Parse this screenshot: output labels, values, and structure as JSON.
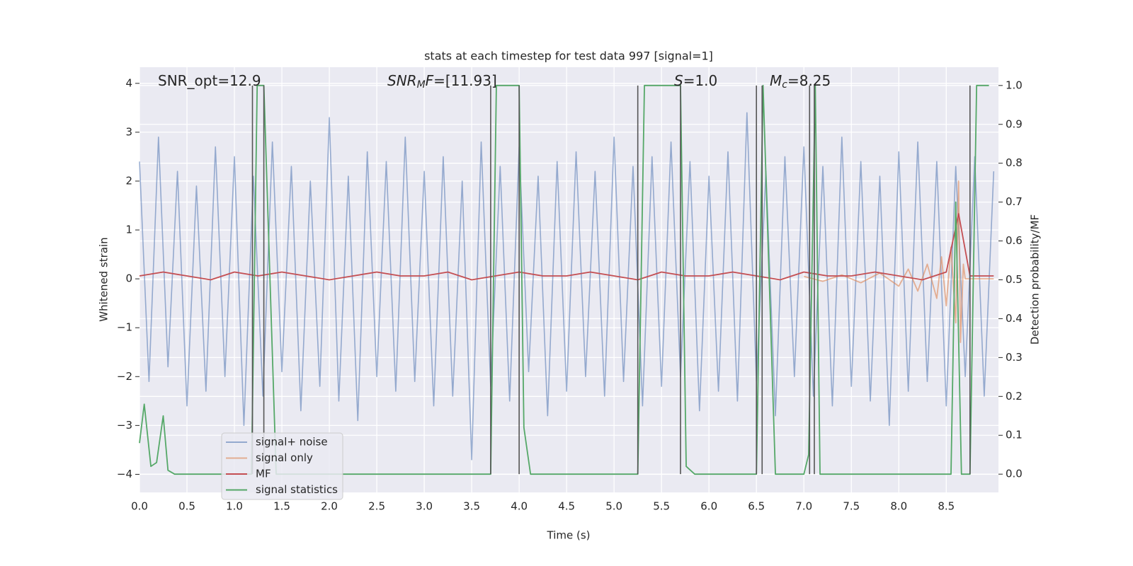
{
  "chart_data": {
    "type": "line",
    "title": "stats at each timestep for test data 997 [signal=1]",
    "xlabel": "Time (s)",
    "ylabel": "Whitened strain",
    "y2label": "Detection probability/MF",
    "annotations": [
      [
        {
          "text": "SNR_opt=12.9"
        }
      ],
      [
        {
          "text": "SNR",
          "style": "italic"
        },
        {
          "text": "M",
          "style": "italic-sub"
        },
        {
          "text": "F",
          "style": "italic"
        },
        {
          "text": "=[11.93]"
        }
      ],
      [
        {
          "text": "S",
          "style": "italic"
        },
        {
          "text": "=1.0"
        }
      ],
      [
        {
          "text": "M",
          "style": "italic"
        },
        {
          "text": "c",
          "style": "italic-sub"
        },
        {
          "text": "=8.25"
        }
      ]
    ],
    "xlim": [
      0,
      9.05
    ],
    "ylim": [
      -4.37,
      4.33
    ],
    "y2lim": [
      -0.047,
      1.047
    ],
    "xticks": [
      {
        "value": 0,
        "label": "0.0"
      },
      0.5,
      {
        "value": 1,
        "label": "1.0"
      },
      1.5,
      {
        "value": 2,
        "label": "2.0"
      },
      2.5,
      {
        "value": 3,
        "label": "3.0"
      },
      3.5,
      {
        "value": 4,
        "label": "4.0"
      },
      4.5,
      {
        "value": 5,
        "label": "5.0"
      },
      5.5,
      {
        "value": 6,
        "label": "6.0"
      },
      6.5,
      {
        "value": 7,
        "label": "7.0"
      },
      7.5,
      {
        "value": 8,
        "label": "8.0"
      },
      8.5
    ],
    "yticks": [
      {
        "value": -4,
        "label": "−4"
      },
      {
        "value": -3,
        "label": "−3"
      },
      {
        "value": -2,
        "label": "−2"
      },
      {
        "value": -1,
        "label": "−1"
      },
      0,
      1,
      2,
      3,
      4
    ],
    "y2ticks": [
      {
        "value": 0,
        "label": "0.0"
      },
      0.1,
      0.2,
      0.3,
      0.4,
      0.5,
      0.6,
      0.7,
      0.8,
      0.9,
      {
        "value": 1,
        "label": "1.0"
      }
    ],
    "grid": true,
    "legend": "lower left",
    "series": [
      {
        "name": "signal+ noise",
        "color": "#4c72b0",
        "opacity": 0.55,
        "x": [
          0,
          0.1,
          0.2,
          0.3,
          0.4,
          0.5,
          0.6,
          0.7,
          0.8,
          0.9,
          1.0,
          1.1,
          1.2,
          1.3,
          1.4,
          1.5,
          1.6,
          1.7,
          1.8,
          1.9,
          2.0,
          2.1,
          2.2,
          2.3,
          2.4,
          2.5,
          2.6,
          2.7,
          2.8,
          2.9,
          3.0,
          3.1,
          3.2,
          3.3,
          3.4,
          3.5,
          3.6,
          3.7,
          3.8,
          3.9,
          4.0,
          4.1,
          4.2,
          4.3,
          4.4,
          4.5,
          4.6,
          4.7,
          4.8,
          4.9,
          5.0,
          5.1,
          5.2,
          5.3,
          5.4,
          5.5,
          5.6,
          5.7,
          5.8,
          5.9,
          6.0,
          6.1,
          6.2,
          6.3,
          6.4,
          6.5,
          6.6,
          6.7,
          6.8,
          6.9,
          7.0,
          7.1,
          7.2,
          7.3,
          7.4,
          7.5,
          7.6,
          7.7,
          7.8,
          7.9,
          8.0,
          8.1,
          8.2,
          8.3,
          8.4,
          8.5,
          8.6,
          8.7,
          8.8,
          8.9,
          9.0
        ],
        "values": [
          2.4,
          -2.1,
          2.9,
          -1.8,
          2.2,
          -2.6,
          1.9,
          -2.3,
          2.7,
          -2.0,
          2.5,
          -3.0,
          2.1,
          -2.4,
          2.8,
          -1.9,
          2.3,
          -2.7,
          2.0,
          -2.2,
          3.3,
          -2.5,
          2.1,
          -2.9,
          2.6,
          -2.0,
          2.4,
          -2.3,
          2.9,
          -2.1,
          2.2,
          -2.6,
          2.5,
          -2.4,
          2.0,
          -3.7,
          2.8,
          -2.2,
          2.3,
          -2.5,
          2.7,
          -1.9,
          2.1,
          -2.8,
          2.4,
          -2.3,
          2.6,
          -2.0,
          2.2,
          -2.4,
          2.9,
          -2.1,
          2.3,
          -2.6,
          2.5,
          -2.2,
          2.8,
          -2.0,
          2.4,
          -2.7,
          2.1,
          -2.3,
          2.6,
          -2.5,
          3.4,
          -2.1,
          2.2,
          -2.8,
          2.5,
          -2.0,
          2.7,
          -2.4,
          2.3,
          -2.6,
          2.9,
          -2.2,
          2.4,
          -2.5,
          2.1,
          -3.0,
          2.6,
          -2.3,
          2.8,
          -2.1,
          2.4,
          -2.6,
          2.3,
          -2.0,
          2.5,
          -2.4,
          2.2
        ]
      },
      {
        "name": "signal only",
        "color": "#dd8452",
        "opacity": 0.6,
        "x": [
          7.0,
          7.2,
          7.4,
          7.6,
          7.8,
          8.0,
          8.1,
          8.2,
          8.3,
          8.4,
          8.45,
          8.5,
          8.55,
          8.6,
          8.63,
          8.65,
          8.68,
          8.7,
          8.8,
          9.0
        ],
        "values": [
          0.05,
          -0.05,
          0.08,
          -0.08,
          0.12,
          -0.15,
          0.2,
          -0.25,
          0.3,
          -0.4,
          0.45,
          -0.55,
          0.65,
          -0.9,
          2.0,
          -1.3,
          0.3,
          0,
          0,
          0
        ]
      },
      {
        "name": "MF",
        "color": "#c44e52",
        "opacity": 1,
        "axis": "y2",
        "x": [
          0,
          0.25,
          0.5,
          0.75,
          1.0,
          1.25,
          1.5,
          1.75,
          2.0,
          2.25,
          2.5,
          2.75,
          3.0,
          3.25,
          3.5,
          3.75,
          4.0,
          4.25,
          4.5,
          4.75,
          5.0,
          5.25,
          5.5,
          5.75,
          6.0,
          6.25,
          6.5,
          6.75,
          7.0,
          7.25,
          7.5,
          7.75,
          8.0,
          8.25,
          8.5,
          8.63,
          8.75,
          9.0
        ],
        "values": [
          0.51,
          0.52,
          0.51,
          0.5,
          0.52,
          0.51,
          0.52,
          0.51,
          0.5,
          0.51,
          0.52,
          0.51,
          0.51,
          0.52,
          0.5,
          0.51,
          0.52,
          0.51,
          0.51,
          0.52,
          0.51,
          0.5,
          0.52,
          0.51,
          0.51,
          0.52,
          0.51,
          0.5,
          0.52,
          0.51,
          0.51,
          0.52,
          0.51,
          0.5,
          0.52,
          0.67,
          0.51,
          0.51
        ]
      },
      {
        "name": "signal statistics",
        "color": "#55a868",
        "opacity": 1,
        "axis": "y2",
        "x": [
          0,
          0.05,
          0.12,
          0.18,
          0.25,
          0.3,
          0.37,
          1.18,
          1.24,
          1.31,
          1.44,
          3.7,
          3.76,
          4.0,
          4.05,
          4.12,
          5.25,
          5.32,
          5.7,
          5.76,
          5.85,
          6.5,
          6.57,
          6.7,
          7.0,
          7.05,
          7.12,
          7.17,
          8.55,
          8.6,
          8.66,
          8.75,
          8.82,
          8.95
        ],
        "values": [
          0.08,
          0.18,
          0.02,
          0.03,
          0.15,
          0.01,
          0,
          0,
          1,
          1,
          0,
          0,
          1,
          1,
          0.12,
          0,
          0,
          1,
          1,
          0.02,
          0,
          0,
          1,
          0,
          0,
          0.05,
          1,
          0,
          0,
          0.7,
          0,
          0,
          1,
          1
        ]
      }
    ],
    "vlines": [
      1.19,
      1.31,
      3.7,
      4.0,
      5.25,
      5.7,
      6.5,
      6.56,
      7.06,
      7.11,
      8.75
    ],
    "vline_color": "#555555"
  }
}
